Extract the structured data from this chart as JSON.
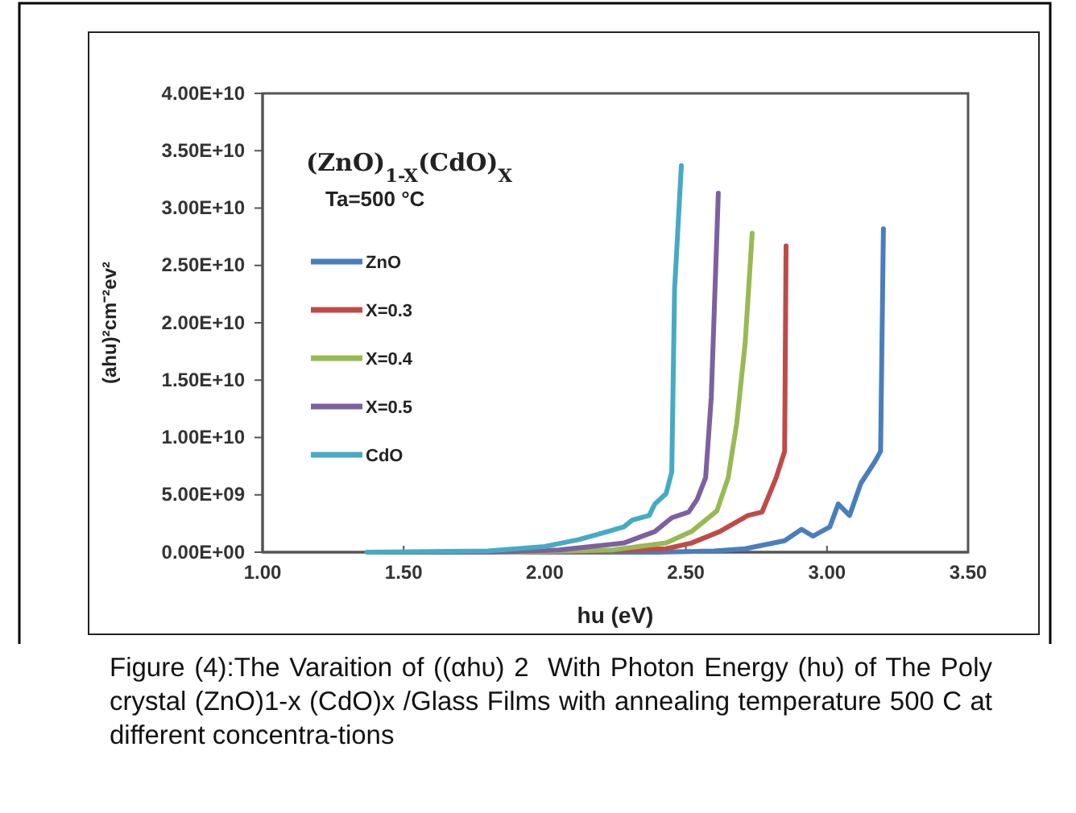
{
  "chart_data": {
    "type": "line",
    "title": "(ZnO)$_{1-X}$(CdO)$_{X}$",
    "subtitle": "Ta=500 °C",
    "xlabel": "hu (eV)",
    "ylabel": "(ahu)²cm⁻²ev²",
    "xlim": [
      1,
      3.5
    ],
    "xticks": [
      {
        "value": 1,
        "label": "1.00"
      },
      {
        "value": 1.5,
        "label": "1.50"
      },
      {
        "value": 2,
        "label": "2.00"
      },
      {
        "value": 2.5,
        "label": "2.50"
      },
      {
        "value": 3,
        "label": "3.00"
      },
      {
        "value": 3.5,
        "label": "3.50"
      }
    ],
    "ylim": [
      0,
      40000000000
    ],
    "yticks": [
      {
        "value": 0,
        "label": "0.00E+00"
      },
      {
        "value": 5000000000,
        "label": "5.00E+09"
      },
      {
        "value": 10000000000,
        "label": "1.00E+10"
      },
      {
        "value": 15000000000,
        "label": "1.50E+10"
      },
      {
        "value": 20000000000,
        "label": "2.00E+10"
      },
      {
        "value": 25000000000,
        "label": "2.50E+10"
      },
      {
        "value": 30000000000,
        "label": "3.00E+10"
      },
      {
        "value": 35000000000,
        "label": "3.50E+10"
      },
      {
        "value": 40000000000,
        "label": "4.00E+10"
      }
    ],
    "grid": false,
    "legend": "left",
    "marker": "none",
    "line_style": "solid",
    "series": [
      {
        "name": "ZnO",
        "color": "#4a7ebb",
        "x": [
          1.4,
          2.0,
          2.4,
          2.6,
          2.71,
          2.85,
          2.91,
          2.95,
          3.01,
          3.04,
          3.08,
          3.12,
          3.17,
          3.19,
          3.2
        ],
        "values": [
          0,
          0,
          0,
          100000000,
          300000000,
          1000000000,
          2000000000,
          1400000000,
          2200000000,
          4200000000,
          3200000000,
          6000000000,
          7900000000,
          8800000000,
          28200000000
        ]
      },
      {
        "name": "X=0.3",
        "color": "#be4b48",
        "x": [
          1.4,
          1.9,
          2.2,
          2.43,
          2.52,
          2.62,
          2.72,
          2.77,
          2.82,
          2.85,
          2.855
        ],
        "values": [
          0,
          0,
          100000000,
          300000000,
          800000000,
          1800000000,
          3200000000,
          3500000000,
          6500000000,
          8800000000,
          26700000000
        ]
      },
      {
        "name": "X=0.4",
        "color": "#98b954",
        "x": [
          1.4,
          1.9,
          2.24,
          2.43,
          2.52,
          2.61,
          2.65,
          2.68,
          2.71,
          2.735
        ],
        "values": [
          0,
          0,
          200000000,
          800000000,
          1800000000,
          3600000000,
          6500000000,
          11200000000,
          18200000000,
          27800000000
        ]
      },
      {
        "name": "X=0.5",
        "color": "#7d60a0",
        "x": [
          1.4,
          1.8,
          2.05,
          2.28,
          2.39,
          2.45,
          2.51,
          2.54,
          2.57,
          2.59,
          2.615
        ],
        "values": [
          0,
          0,
          200000000,
          800000000,
          1800000000,
          3000000000,
          3500000000,
          4600000000,
          6500000000,
          13500000000,
          31300000000
        ]
      },
      {
        "name": "CdO",
        "color": "#46aac5",
        "x": [
          1.37,
          1.8,
          2.0,
          2.12,
          2.18,
          2.28,
          2.31,
          2.37,
          2.39,
          2.43,
          2.45,
          2.46,
          2.484
        ],
        "values": [
          0,
          100000000,
          500000000,
          1100000000,
          1500000000,
          2200000000,
          2800000000,
          3200000000,
          4200000000,
          5100000000,
          7000000000,
          22900000000,
          33700000000
        ]
      }
    ],
    "annotations": [
      "Figure (4):The Varaition of ((αhυ) 2  With Photon Energy (hυ) of The Poly crystal (ZnO)1-x (CdO)x /Glass Films with annealing temperature 500 C at different concentra-tions"
    ]
  }
}
